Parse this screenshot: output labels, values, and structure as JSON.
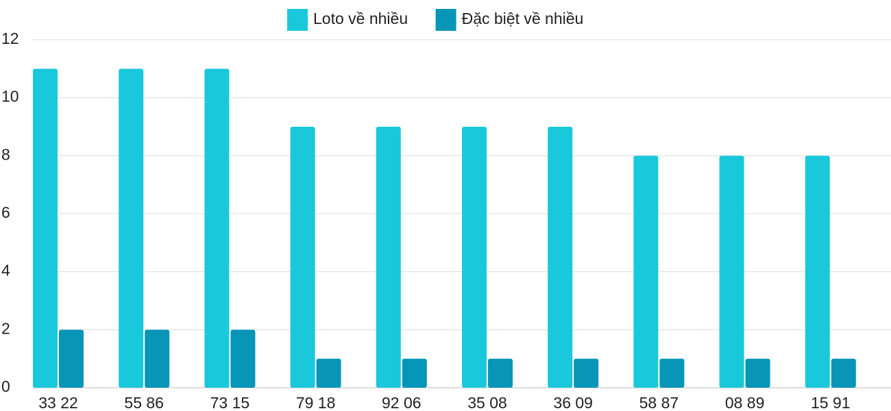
{
  "chart_data": {
    "type": "bar",
    "categories": [
      "33 22",
      "55 86",
      "73 15",
      "79 18",
      "92 06",
      "35 08",
      "36 09",
      "58 87",
      "08 89",
      "15 91"
    ],
    "series": [
      {
        "name": "Loto về nhiều",
        "color": "#1ac8db",
        "values": [
          11,
          11,
          11,
          9,
          9,
          9,
          9,
          8,
          8,
          8
        ]
      },
      {
        "name": "Đặc biệt về nhiều",
        "color": "#0795b8",
        "values": [
          2,
          2,
          2,
          1,
          1,
          1,
          1,
          1,
          1,
          1
        ]
      }
    ],
    "ylim": [
      0,
      12
    ],
    "yticks": [
      0,
      2,
      4,
      6,
      8,
      10,
      12
    ],
    "grid": true,
    "legend": "top"
  }
}
